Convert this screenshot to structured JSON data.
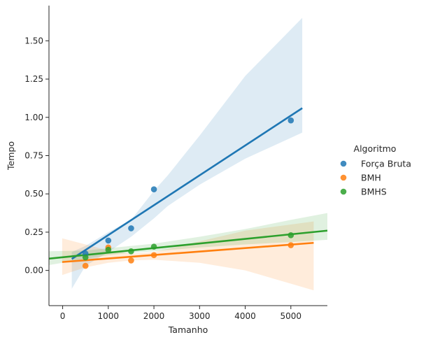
{
  "chart_data": {
    "type": "scatter",
    "xlabel": "Tamanho",
    "ylabel": "Tempo",
    "xlim": [
      -300,
      5800
    ],
    "ylim": [
      -0.23,
      1.73
    ],
    "xticks": [
      0,
      1000,
      2000,
      3000,
      4000,
      5000
    ],
    "yticks": [
      0.0,
      0.25,
      0.5,
      0.75,
      1.0,
      1.25,
      1.5
    ],
    "xtick_labels": [
      "0",
      "1000",
      "2000",
      "3000",
      "4000",
      "5000"
    ],
    "ytick_labels": [
      "0.00",
      "0.25",
      "0.50",
      "0.75",
      "1.00",
      "1.25",
      "1.50"
    ],
    "grid": false,
    "legend": {
      "title": "Algoritmo",
      "placement": "right"
    },
    "series": [
      {
        "name": "Força Bruta",
        "color": "#1f77b4",
        "points": [
          [
            500,
            0.11
          ],
          [
            1000,
            0.195
          ],
          [
            1500,
            0.275
          ],
          [
            2000,
            0.53
          ],
          [
            5000,
            0.98
          ]
        ],
        "regression": [
          [
            200,
            0.075
          ],
          [
            5250,
            1.06
          ]
        ],
        "ci": [
          [
            200,
            -0.12,
            0.12
          ],
          [
            500,
            0.03,
            0.16
          ],
          [
            1000,
            0.12,
            0.25
          ],
          [
            1500,
            0.22,
            0.33
          ],
          [
            2000,
            0.34,
            0.52
          ],
          [
            2300,
            0.42,
            0.62
          ],
          [
            3000,
            0.56,
            0.88
          ],
          [
            4000,
            0.73,
            1.27
          ],
          [
            5250,
            0.9,
            1.65
          ]
        ]
      },
      {
        "name": "BMH",
        "color": "#ff7f0e",
        "points": [
          [
            500,
            0.03
          ],
          [
            1000,
            0.15
          ],
          [
            1500,
            0.065
          ],
          [
            2000,
            0.1
          ],
          [
            5000,
            0.165
          ]
        ],
        "regression": [
          [
            -10,
            0.055
          ],
          [
            5500,
            0.18
          ]
        ],
        "ci": [
          [
            -10,
            -0.03,
            0.21
          ],
          [
            500,
            0.02,
            0.17
          ],
          [
            1000,
            0.05,
            0.13
          ],
          [
            1500,
            0.065,
            0.11
          ],
          [
            2000,
            0.07,
            0.12
          ],
          [
            3000,
            0.05,
            0.19
          ],
          [
            4000,
            0.0,
            0.26
          ],
          [
            5500,
            -0.13,
            0.32
          ]
        ]
      },
      {
        "name": "BMHS",
        "color": "#2ca02c",
        "points": [
          [
            500,
            0.085
          ],
          [
            1000,
            0.135
          ],
          [
            1500,
            0.125
          ],
          [
            2000,
            0.155
          ],
          [
            5000,
            0.23
          ]
        ],
        "regression": [
          [
            -300,
            0.077
          ],
          [
            5800,
            0.26
          ]
        ],
        "ci": [
          [
            -300,
            0.035,
            0.125
          ],
          [
            500,
            0.075,
            0.13
          ],
          [
            1000,
            0.1,
            0.145
          ],
          [
            1500,
            0.115,
            0.16
          ],
          [
            2000,
            0.125,
            0.175
          ],
          [
            3000,
            0.15,
            0.22
          ],
          [
            4000,
            0.17,
            0.27
          ],
          [
            5000,
            0.185,
            0.33
          ],
          [
            5800,
            0.2,
            0.375
          ]
        ]
      }
    ]
  }
}
